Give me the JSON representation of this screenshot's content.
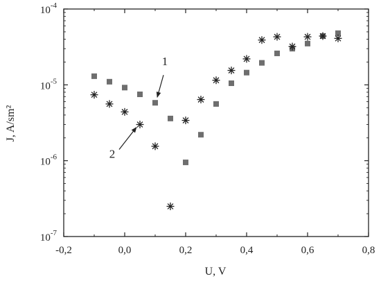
{
  "chart_data": {
    "type": "scatter",
    "xlabel": "U, V",
    "ylabel": "J, A/sm²",
    "yscale": "log",
    "xlim": [
      -0.2,
      0.8
    ],
    "ylim": [
      1e-07,
      0.0001
    ],
    "x_ticks": [
      -0.2,
      0.0,
      0.2,
      0.4,
      0.6,
      0.8
    ],
    "x_tick_labels": [
      "-0,2",
      "0,0",
      "0,2",
      "0,4",
      "0,6",
      "0,8"
    ],
    "y_ticks": [
      1e-07,
      1e-06,
      1e-05,
      0.0001
    ],
    "y_tick_labels": [
      {
        "base": "10",
        "exp": "-7"
      },
      {
        "base": "10",
        "exp": "-6"
      },
      {
        "base": "10",
        "exp": "-5"
      },
      {
        "base": "10",
        "exp": "-4"
      }
    ],
    "grid": false,
    "legend": "none",
    "series": [
      {
        "name": "1",
        "marker": "square",
        "color": "#6e6e6e",
        "points": [
          {
            "x": -0.1,
            "y": 1.3e-05
          },
          {
            "x": -0.05,
            "y": 1.1e-05
          },
          {
            "x": 0.0,
            "y": 9.2e-06
          },
          {
            "x": 0.05,
            "y": 7.5e-06
          },
          {
            "x": 0.1,
            "y": 5.8e-06
          },
          {
            "x": 0.15,
            "y": 3.6e-06
          },
          {
            "x": 0.2,
            "y": 9.5e-07
          },
          {
            "x": 0.25,
            "y": 2.2e-06
          },
          {
            "x": 0.3,
            "y": 5.6e-06
          },
          {
            "x": 0.35,
            "y": 1.05e-05
          },
          {
            "x": 0.4,
            "y": 1.45e-05
          },
          {
            "x": 0.45,
            "y": 1.95e-05
          },
          {
            "x": 0.5,
            "y": 2.6e-05
          },
          {
            "x": 0.55,
            "y": 3e-05
          },
          {
            "x": 0.6,
            "y": 3.5e-05
          },
          {
            "x": 0.65,
            "y": 4.4e-05
          },
          {
            "x": 0.7,
            "y": 4.8e-05
          }
        ]
      },
      {
        "name": "2",
        "marker": "asterisk",
        "color": "#222222",
        "points": [
          {
            "x": -0.1,
            "y": 7.4e-06
          },
          {
            "x": -0.05,
            "y": 5.6e-06
          },
          {
            "x": 0.0,
            "y": 4.4e-06
          },
          {
            "x": 0.05,
            "y": 3e-06
          },
          {
            "x": 0.1,
            "y": 1.55e-06
          },
          {
            "x": 0.15,
            "y": 2.5e-07
          },
          {
            "x": 0.2,
            "y": 3.4e-06
          },
          {
            "x": 0.25,
            "y": 6.4e-06
          },
          {
            "x": 0.3,
            "y": 1.15e-05
          },
          {
            "x": 0.35,
            "y": 1.55e-05
          },
          {
            "x": 0.4,
            "y": 2.2e-05
          },
          {
            "x": 0.45,
            "y": 3.9e-05
          },
          {
            "x": 0.5,
            "y": 4.3e-05
          },
          {
            "x": 0.55,
            "y": 3.2e-05
          },
          {
            "x": 0.6,
            "y": 4.3e-05
          },
          {
            "x": 0.65,
            "y": 4.4e-05
          },
          {
            "x": 0.7,
            "y": 4.1e-05
          }
        ]
      }
    ],
    "annotations": [
      {
        "text": "1",
        "series": 0,
        "point_index": 4
      },
      {
        "text": "2",
        "series": 1,
        "point_index": 3
      }
    ]
  }
}
